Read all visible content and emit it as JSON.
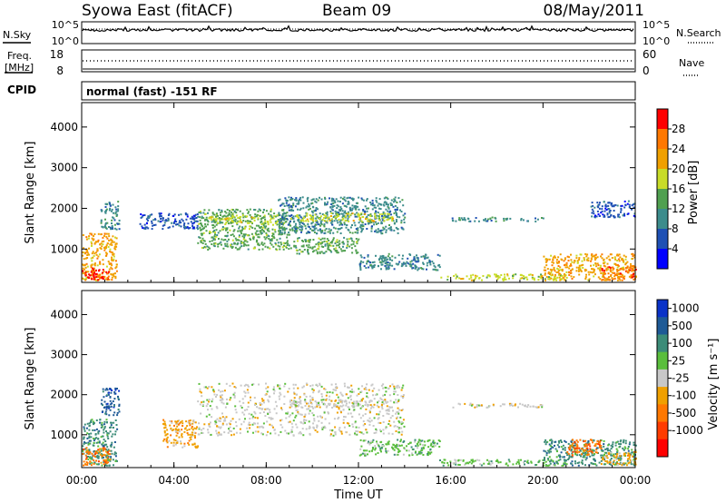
{
  "header": {
    "station": "Syowa East (fitACF)",
    "beam": "Beam 09",
    "date": "08/May/2011"
  },
  "panels": {
    "nsky": {
      "label": "N.Sky",
      "left_ticks": [
        "10^5",
        "10^0"
      ],
      "right_ticks": [
        "10^5",
        "10^0"
      ],
      "right_label": "N.Search"
    },
    "freq": {
      "label_line1": "Freq.",
      "label_line2": "[MHz]",
      "left_ticks": [
        "18",
        "8"
      ],
      "right_ticks": [
        "60",
        "0"
      ],
      "right_label": "Nave"
    },
    "cpid": {
      "label": "CPID",
      "mode": "normal (fast) -151 RF"
    }
  },
  "chart_data": [
    {
      "type": "heatmap",
      "name": "power",
      "ylabel": "Slant Range [km]",
      "xlabel": "",
      "xlim": [
        0,
        24
      ],
      "ylim": [
        180,
        4600
      ],
      "x_ticks": [
        "00:00",
        "04:00",
        "08:00",
        "12:00",
        "16:00",
        "20:00",
        "00:00"
      ],
      "y_ticks": [
        1000,
        2000,
        3000,
        4000
      ],
      "colorbar": {
        "label": "Power [dB]",
        "ticks": [
          "4",
          "8",
          "12",
          "16",
          "20",
          "24",
          "28"
        ],
        "colors": [
          "#0000ff",
          "#1e50b4",
          "#3c8c8c",
          "#50a050",
          "#c8dc28",
          "#f0a000",
          "#ff7800",
          "#ff0000"
        ]
      },
      "regions": [
        {
          "t0": 0.0,
          "t1": 1.5,
          "r0": 250,
          "r1": 1400,
          "level": 5
        },
        {
          "t0": 0.0,
          "t1": 1.2,
          "r0": 250,
          "r1": 550,
          "level": 7
        },
        {
          "t0": 0.8,
          "t1": 1.6,
          "r0": 1500,
          "r1": 2200,
          "level": 2
        },
        {
          "t0": 2.5,
          "t1": 5.0,
          "r0": 1500,
          "r1": 1900,
          "level": 1
        },
        {
          "t0": 5.0,
          "t1": 9.0,
          "r0": 1000,
          "r1": 2000,
          "level": 3
        },
        {
          "t0": 5.5,
          "t1": 8.5,
          "r0": 1650,
          "r1": 1850,
          "level": 4
        },
        {
          "t0": 8.5,
          "t1": 14.0,
          "r0": 1400,
          "r1": 2300,
          "level": 2
        },
        {
          "t0": 9.0,
          "t1": 13.5,
          "r0": 1700,
          "r1": 1900,
          "level": 4
        },
        {
          "t0": 9.0,
          "t1": 12.0,
          "r0": 900,
          "r1": 1300,
          "level": 3
        },
        {
          "t0": 12.0,
          "t1": 15.5,
          "r0": 500,
          "r1": 900,
          "level": 2
        },
        {
          "t0": 16.0,
          "t1": 20.0,
          "r0": 1700,
          "r1": 1800,
          "level": 2
        },
        {
          "t0": 15.5,
          "t1": 21.0,
          "r0": 250,
          "r1": 400,
          "level": 4
        },
        {
          "t0": 20.0,
          "t1": 24.0,
          "r0": 250,
          "r1": 900,
          "level": 5
        },
        {
          "t0": 22.5,
          "t1": 24.0,
          "r0": 250,
          "r1": 600,
          "level": 6
        },
        {
          "t0": 22.0,
          "t1": 24.0,
          "r0": 1800,
          "r1": 2200,
          "level": 1
        }
      ]
    },
    {
      "type": "heatmap",
      "name": "velocity",
      "ylabel": "Slant Range [km]",
      "xlabel": "Time UT",
      "xlim": [
        0,
        24
      ],
      "ylim": [
        180,
        4600
      ],
      "x_ticks": [
        "00:00",
        "04:00",
        "08:00",
        "12:00",
        "16:00",
        "20:00",
        "00:00"
      ],
      "y_ticks": [
        1000,
        2000,
        3000,
        4000
      ],
      "colorbar": {
        "label": "Velocity [m s⁻¹]",
        "ticks": [
          "1000",
          "500",
          "100",
          "25",
          "-25",
          "-100",
          "-500",
          "-1000"
        ],
        "colors": [
          "#0a32c8",
          "#1e5a96",
          "#3c8c78",
          "#5abe3c",
          "#c8c8c8",
          "#f0a000",
          "#ff7800",
          "#ff3c00",
          "#ff0000"
        ]
      },
      "regions": [
        {
          "t0": 0.0,
          "t1": 1.5,
          "r0": 250,
          "r1": 1400,
          "level": 2
        },
        {
          "t0": 0.0,
          "t1": 1.2,
          "r0": 250,
          "r1": 700,
          "level": 6
        },
        {
          "t0": 0.8,
          "t1": 1.6,
          "r0": 1500,
          "r1": 2200,
          "level": 1
        },
        {
          "t0": 3.5,
          "t1": 5.0,
          "r0": 700,
          "r1": 1400,
          "level": 5
        },
        {
          "t0": 5.0,
          "t1": 14.0,
          "r0": 1000,
          "r1": 2300,
          "level": 4
        },
        {
          "t0": 9.0,
          "t1": 13.5,
          "r0": 1700,
          "r1": 1900,
          "level": 4
        },
        {
          "t0": 12.0,
          "t1": 15.5,
          "r0": 500,
          "r1": 900,
          "level": 3
        },
        {
          "t0": 16.0,
          "t1": 20.0,
          "r0": 1700,
          "r1": 1800,
          "level": 4
        },
        {
          "t0": 15.5,
          "t1": 21.0,
          "r0": 250,
          "r1": 400,
          "level": 3
        },
        {
          "t0": 20.0,
          "t1": 24.0,
          "r0": 250,
          "r1": 900,
          "level": 2
        },
        {
          "t0": 21.0,
          "t1": 22.5,
          "r0": 500,
          "r1": 900,
          "level": 6
        },
        {
          "t0": 22.5,
          "t1": 24.0,
          "r0": 250,
          "r1": 600,
          "level": 5
        }
      ]
    }
  ]
}
